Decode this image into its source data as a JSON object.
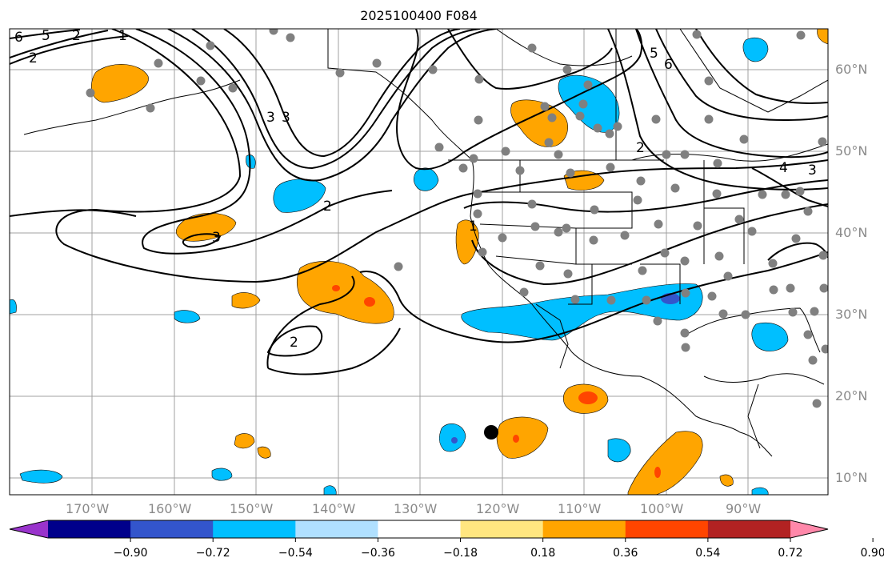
{
  "title": "2025100400 F084",
  "map": {
    "lat_labels": [
      "60°N",
      "50°N",
      "40°N",
      "30°N",
      "20°N",
      "10°N"
    ],
    "lon_labels": [
      "170°W",
      "160°W",
      "150°W",
      "140°W",
      "130°W",
      "120°W",
      "110°W",
      "100°W",
      "90°W"
    ],
    "contour_labels": [
      "2",
      "3",
      "2",
      "3",
      "2",
      "5",
      "6",
      "2",
      "3",
      "4",
      "3",
      "1",
      "2",
      "1",
      "5",
      "6"
    ]
  },
  "colorbar": {
    "colors": [
      "#9933cc",
      "#00008b",
      "#3355cc",
      "#00bfff",
      "#b0e0ff",
      "#ffffff",
      "#ffe680",
      "#ffa500",
      "#ff4500",
      "#b22222",
      "#ff88aa"
    ],
    "ticks": [
      "−0.90",
      "−0.72",
      "−0.54",
      "−0.36",
      "−0.18",
      "0.18",
      "0.36",
      "0.54",
      "0.72",
      "0.90"
    ]
  }
}
